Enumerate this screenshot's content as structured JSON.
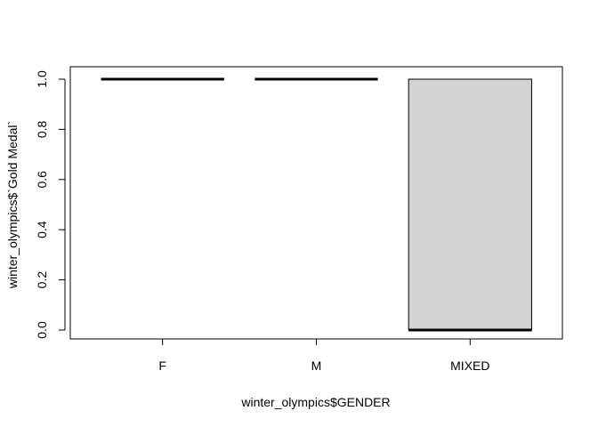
{
  "chart_data": {
    "type": "boxplot",
    "title": "",
    "xlabel": "winter_olympics$GENDER",
    "ylabel": "winter_olympics$`Gold Medal`",
    "categories": [
      "F",
      "M",
      "MIXED"
    ],
    "boxes": [
      {
        "category": "F",
        "min": 1,
        "q1": 1,
        "median": 1,
        "q3": 1,
        "max": 1
      },
      {
        "category": "M",
        "min": 1,
        "q1": 1,
        "median": 1,
        "q3": 1,
        "max": 1
      },
      {
        "category": "MIXED",
        "min": 0,
        "q1": 0,
        "median": 0,
        "q3": 1,
        "max": 1
      }
    ],
    "ylim": [
      0,
      1
    ],
    "yticks": [
      "0.0",
      "0.2",
      "0.4",
      "0.6",
      "0.8",
      "1.0"
    ],
    "grid": false,
    "legend": "none",
    "box_fill": "#d3d3d3",
    "line_color": "#000000",
    "background": "#ffffff"
  }
}
